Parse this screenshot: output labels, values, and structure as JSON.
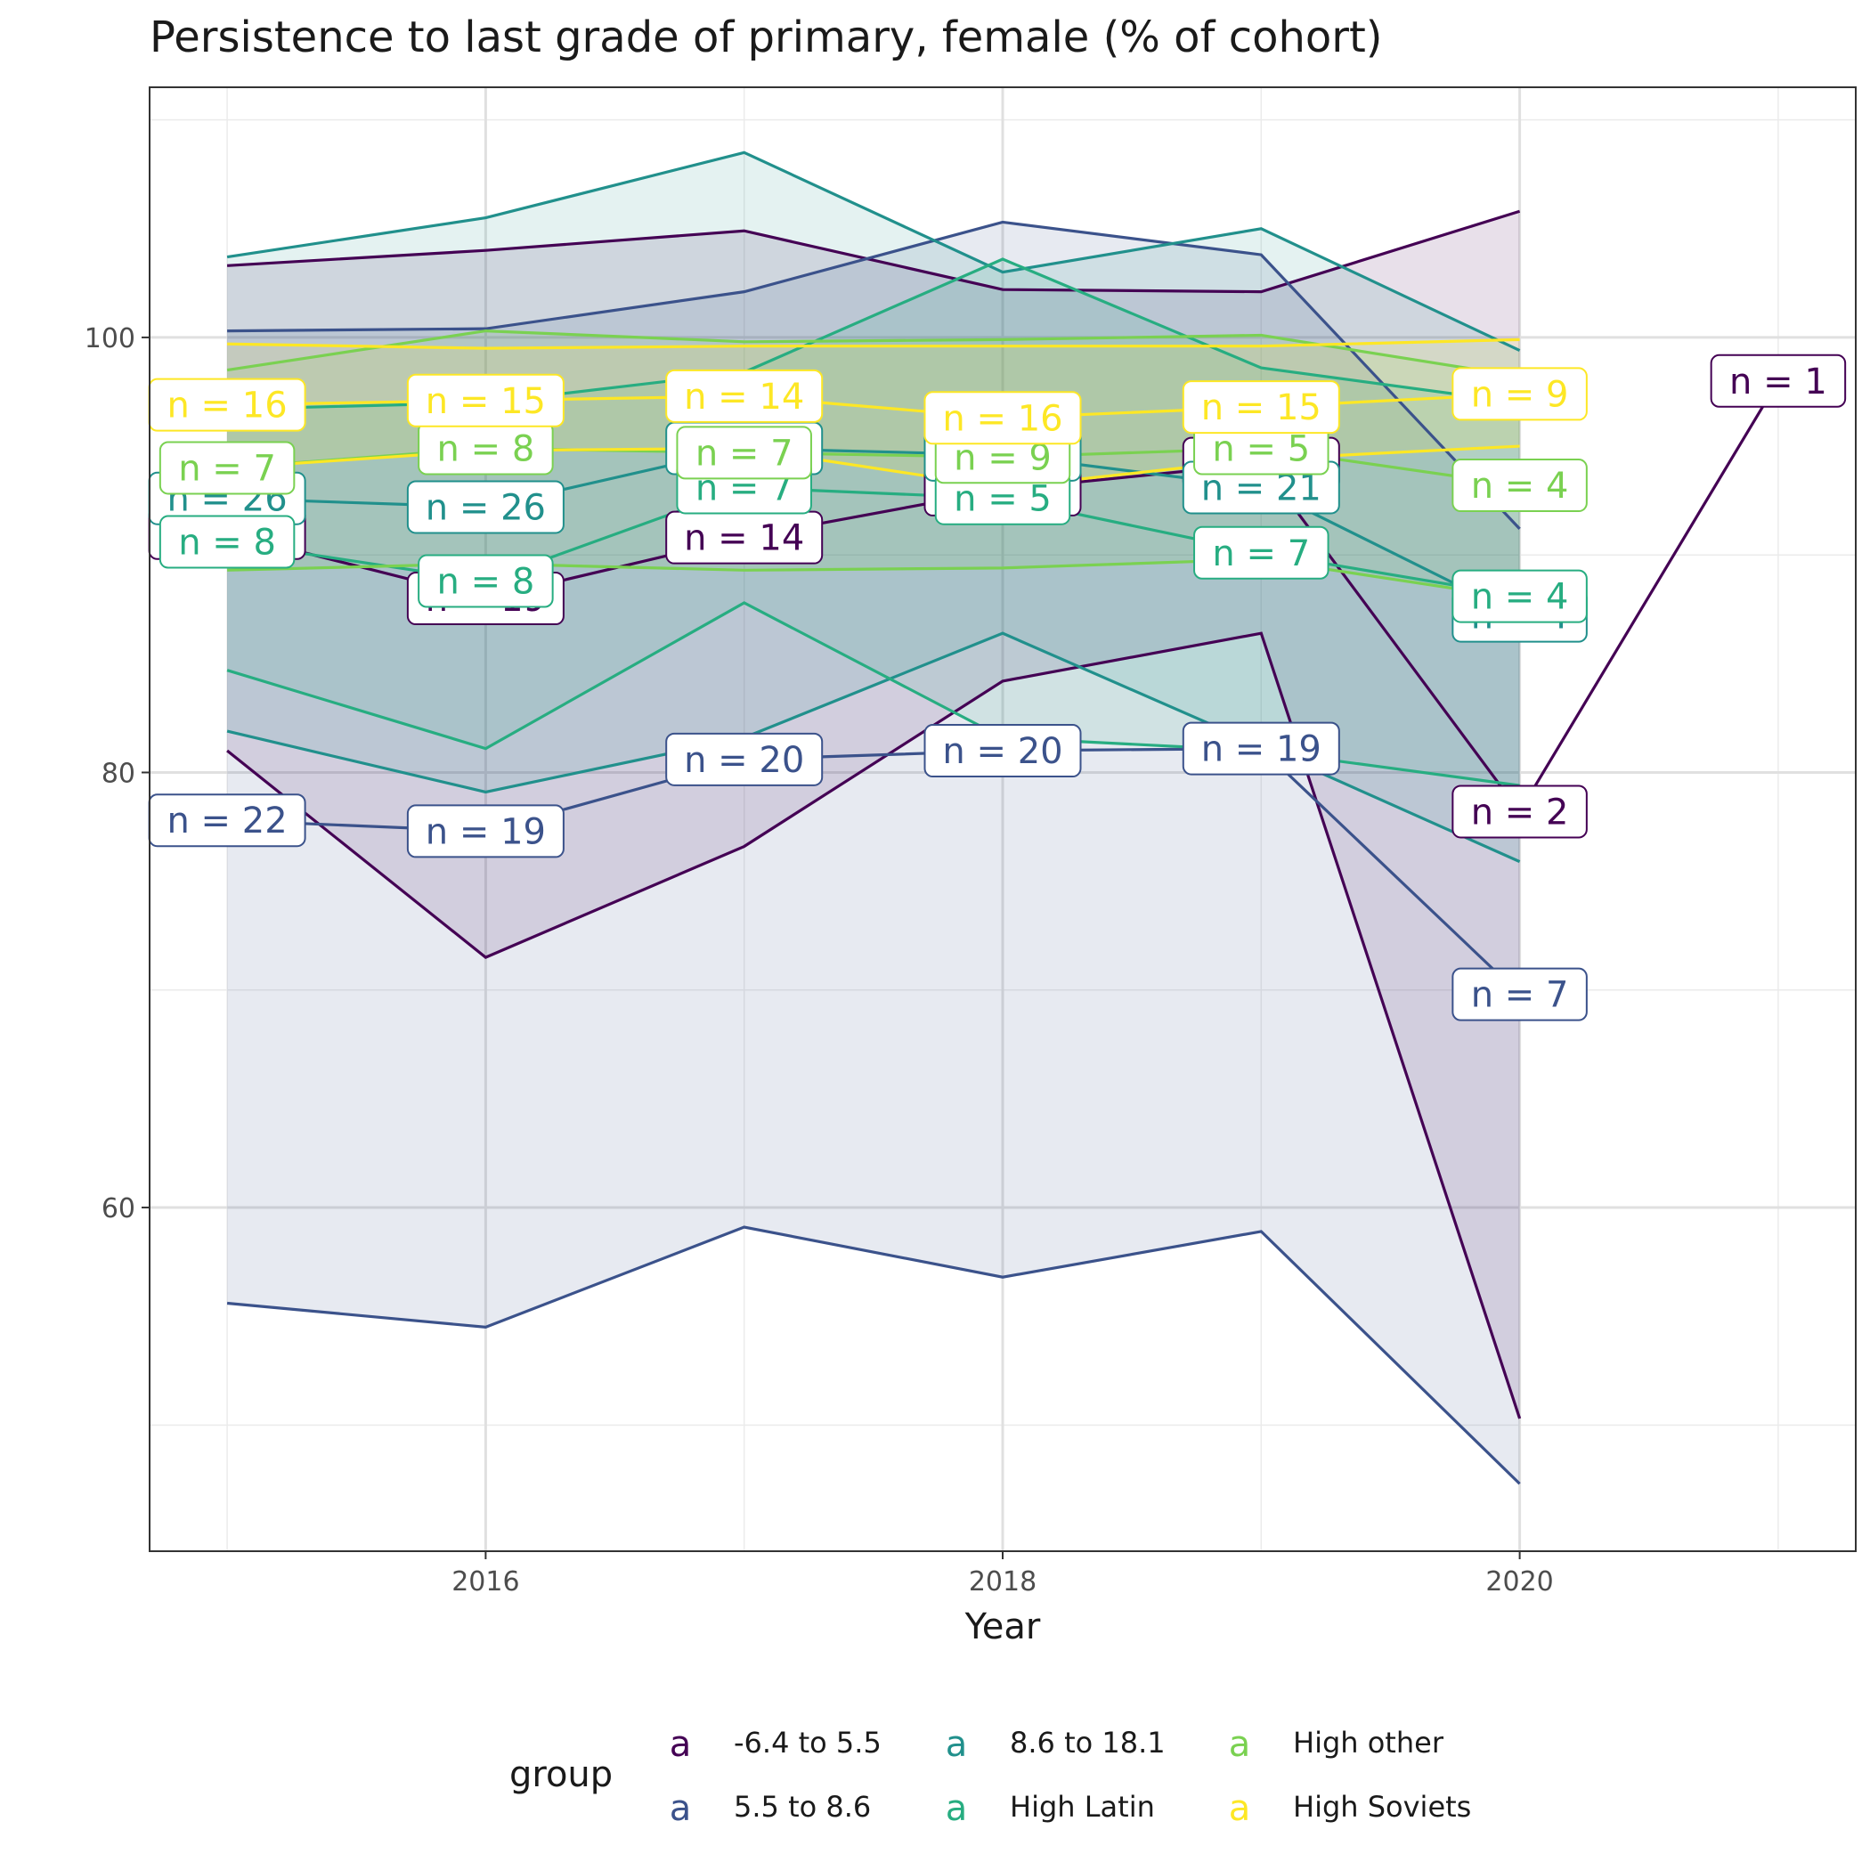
{
  "chart_data": {
    "type": "line",
    "title": "Persistence to last grade of primary, female (% of cohort)",
    "xlabel": "Year",
    "ylabel": "",
    "xlim": [
      2014.7,
      2021.3
    ],
    "ylim": [
      44.2,
      111.5
    ],
    "x_ticks": [
      2016,
      2018,
      2020
    ],
    "y_ticks": [
      60,
      80,
      100
    ],
    "grid": true,
    "legend": {
      "title": "group",
      "position": "bottom",
      "key_glyph": "a"
    },
    "series": [
      {
        "name": "-6.4 to 5.5",
        "color": "#440154",
        "x": [
          2015,
          2016,
          2017,
          2018,
          2019,
          2020,
          2021
        ],
        "mean": [
          91.0,
          88.0,
          90.8,
          93.0,
          94.2,
          78.2,
          98.0
        ],
        "upper": [
          103.3,
          104.0,
          104.9,
          102.2,
          102.1,
          105.8,
          null
        ],
        "lower": [
          81.0,
          71.5,
          76.6,
          84.2,
          86.4,
          50.3,
          null
        ],
        "n": [
          22,
          19,
          14,
          14,
          21,
          2,
          1
        ]
      },
      {
        "name": "5.5 to 8.6",
        "color": "#3b528b",
        "x": [
          2015,
          2016,
          2017,
          2018,
          2019,
          2020
        ],
        "mean": [
          77.8,
          77.3,
          80.6,
          81.0,
          81.1,
          69.8
        ],
        "upper": [
          100.3,
          100.4,
          102.1,
          105.3,
          103.8,
          91.2
        ],
        "lower": [
          55.6,
          54.5,
          59.1,
          56.8,
          58.9,
          47.3
        ],
        "n": [
          22,
          19,
          20,
          20,
          19,
          7
        ]
      },
      {
        "name": "8.6 to 18.1",
        "color": "#21908c",
        "x": [
          2015,
          2016,
          2017,
          2018,
          2019,
          2020
        ],
        "mean": [
          92.6,
          92.2,
          94.9,
          94.6,
          93.1,
          87.2
        ],
        "upper": [
          103.7,
          105.5,
          108.5,
          103.0,
          105.0,
          99.4
        ],
        "lower": [
          81.9,
          79.1,
          81.6,
          86.4,
          81.2,
          75.9
        ],
        "n": [
          26,
          26,
          14,
          14,
          21,
          4
        ]
      },
      {
        "name": "High Latin",
        "color": "#27ad81",
        "x": [
          2015,
          2016,
          2017,
          2018,
          2019,
          2020
        ],
        "mean": [
          90.6,
          88.8,
          93.1,
          92.6,
          90.1,
          88.1
        ],
        "upper": [
          96.7,
          97.0,
          98.4,
          103.6,
          98.6,
          97.0
        ],
        "lower": [
          84.7,
          81.1,
          87.8,
          81.6,
          81.0,
          79.4
        ],
        "n": [
          8,
          8,
          7,
          5,
          7,
          4
        ]
      },
      {
        "name": "High other",
        "color": "#7ad151",
        "x": [
          2015,
          2016,
          2017,
          2018,
          2019,
          2020
        ],
        "mean": [
          94.0,
          94.9,
          94.7,
          94.5,
          94.9,
          93.2
        ],
        "upper": [
          98.5,
          100.3,
          99.8,
          99.9,
          100.1,
          98.2
        ],
        "lower": [
          89.3,
          89.6,
          89.3,
          89.4,
          89.8,
          88.0
        ],
        "n": [
          7,
          8,
          7,
          9,
          5,
          4
        ]
      },
      {
        "name": "High Soviets",
        "color": "#fde725",
        "x": [
          2015,
          2016,
          2017,
          2018,
          2019,
          2020
        ],
        "mean": [
          96.9,
          97.1,
          97.3,
          96.3,
          96.8,
          97.4
        ],
        "upper": [
          99.7,
          99.5,
          99.6,
          99.6,
          99.6,
          99.9
        ],
        "lower": [
          94.0,
          94.8,
          94.9,
          93.1,
          94.4,
          95.0
        ],
        "n": [
          16,
          15,
          14,
          16,
          15,
          9
        ]
      }
    ]
  }
}
